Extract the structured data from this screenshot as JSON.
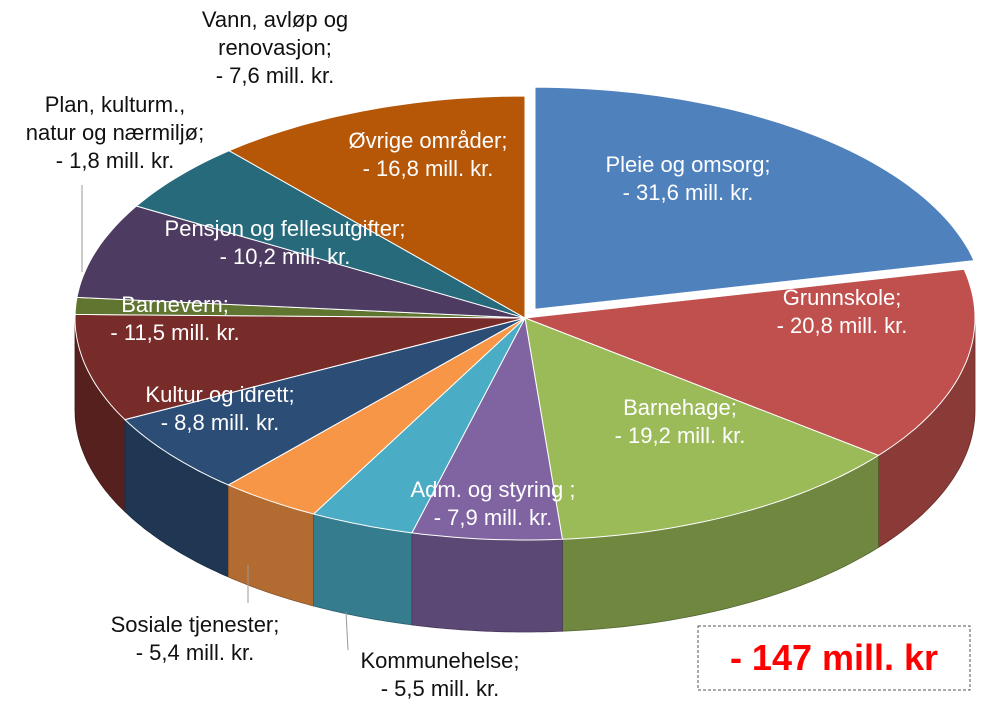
{
  "chart_data": {
    "type": "pie",
    "categories": [
      "Pleie og omsorg;",
      "Grunnskole;",
      "Barnehage;",
      "Adm. og styring ;",
      "Kommunehelse;",
      "Sosiale tjenester;",
      "Kultur og idrett;",
      "Barnevern;",
      "Plan, kulturm.,\nnatur og nærmiljø;",
      "Pensjon og fellesutgifter;",
      "Vann, avløp og\nrenovasjon;",
      "Øvrige områder;"
    ],
    "values": [
      -31.6,
      -20.8,
      -19.2,
      -7.9,
      -5.5,
      -5.4,
      -8.8,
      -11.5,
      -1.8,
      -10.2,
      -7.6,
      -16.8
    ],
    "value_labels": [
      "- 31,6 mill. kr.",
      "- 20,8 mill. kr.",
      "- 19,2 mill. kr.",
      "- 7,9 mill. kr.",
      "- 5,5 mill. kr.",
      "- 5,4 mill. kr.",
      "- 8,8 mill. kr.",
      "- 11,5 mill. kr.",
      "- 1,8 mill. kr.",
      "- 10,2 mill. kr.",
      "- 7,6 mill. kr.",
      "- 16,8 mill. kr."
    ],
    "colors": [
      "#4f81bd",
      "#c0504d",
      "#9bbb59",
      "#8064a2",
      "#4bacc6",
      "#f79646",
      "#2c4d75",
      "#772c2a",
      "#5f7530",
      "#4d3b62",
      "#276a7c",
      "#b65708"
    ],
    "total_label": "- 147 mill. kr"
  }
}
